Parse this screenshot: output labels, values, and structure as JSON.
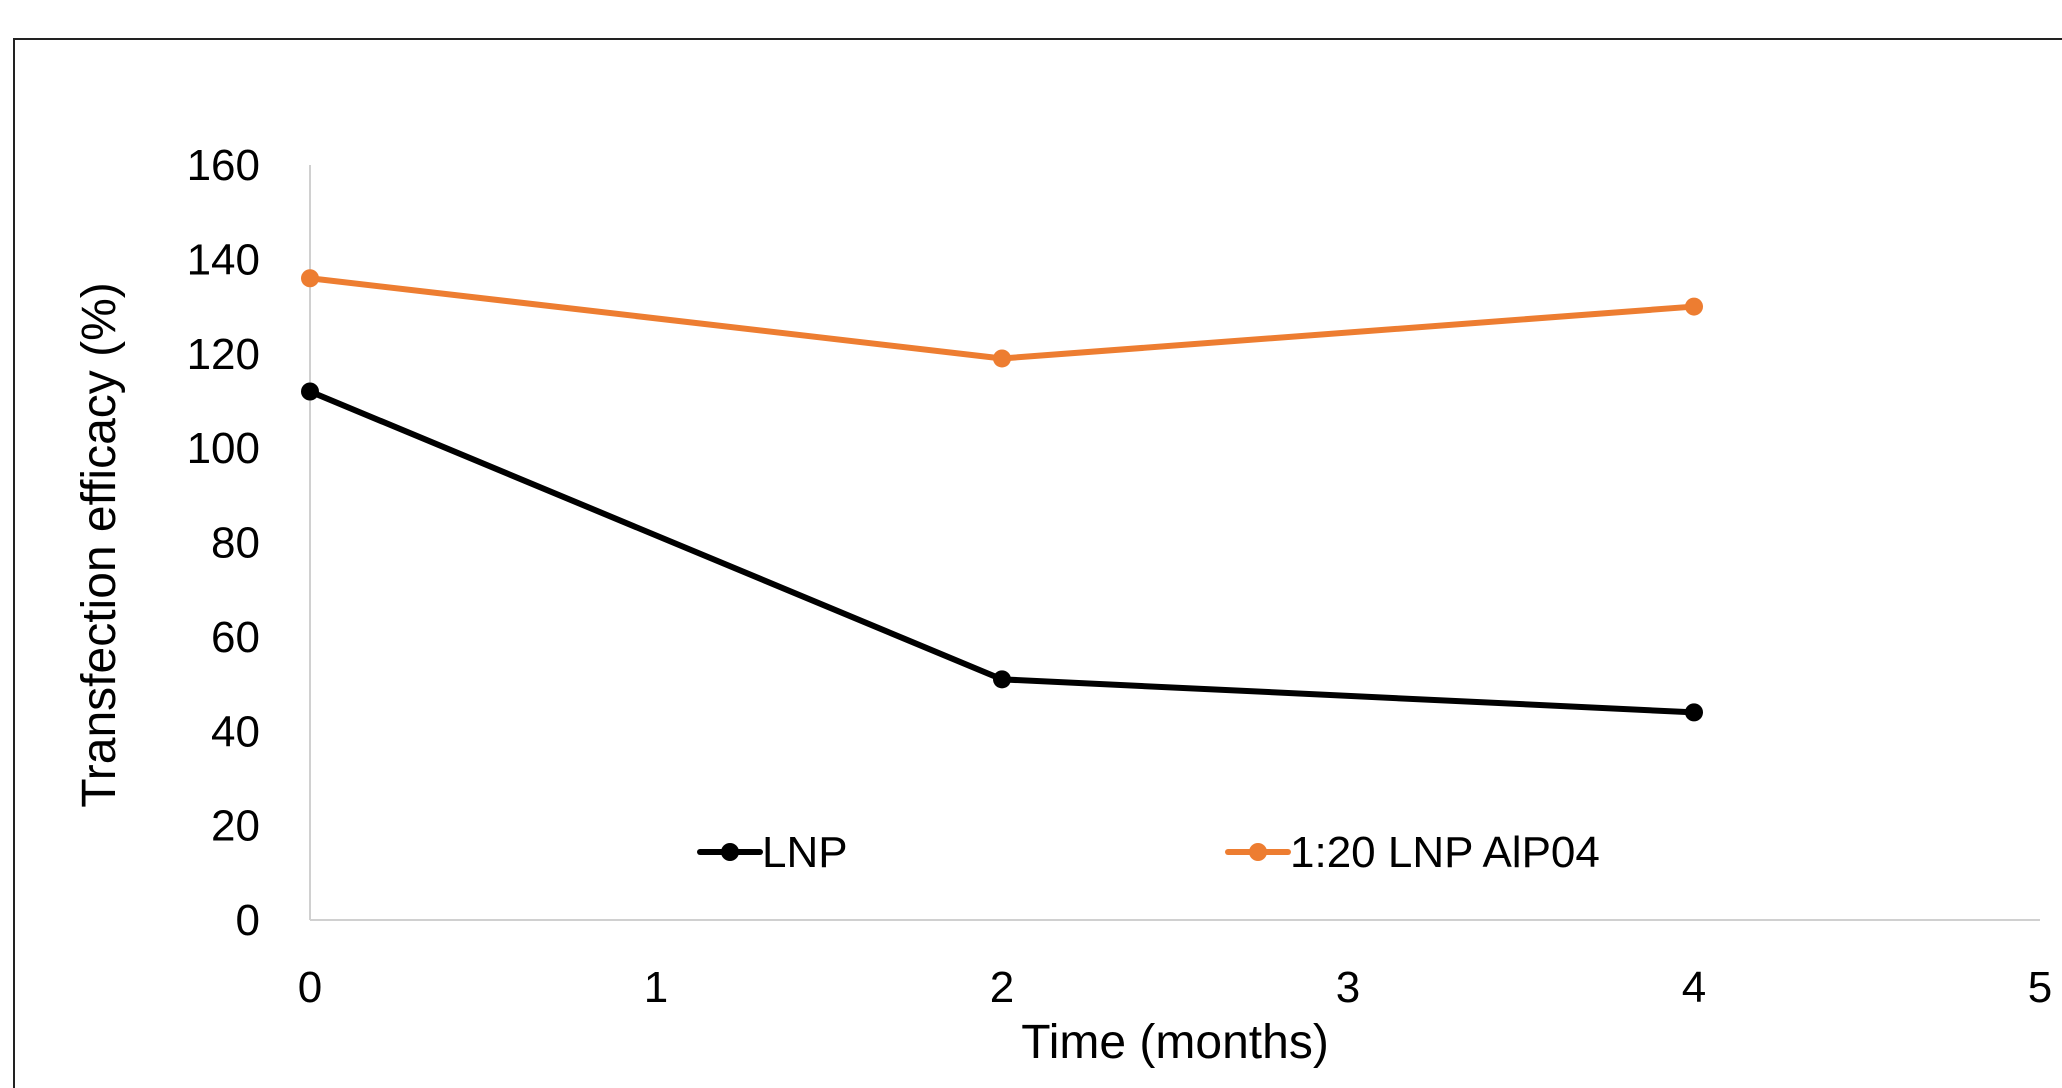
{
  "chart_data": {
    "type": "line",
    "xlabel": "Time (months)",
    "ylabel": "Transfection efficacy (%)",
    "xlim": [
      0,
      5
    ],
    "ylim": [
      0,
      160
    ],
    "x_ticks": [
      "0",
      "1",
      "2",
      "3",
      "4",
      "5"
    ],
    "y_ticks": [
      "0",
      "20",
      "40",
      "60",
      "80",
      "100",
      "120",
      "140",
      "160"
    ],
    "grid": false,
    "legend_position": "bottom-inside",
    "series": [
      {
        "name": "LNP",
        "color": "#000000",
        "x": [
          0,
          2,
          4
        ],
        "y": [
          112,
          51,
          44
        ]
      },
      {
        "name": "1:20 LNP AlP04",
        "color": "#ED7D31",
        "x": [
          0,
          2,
          4
        ],
        "y": [
          136,
          119,
          130
        ]
      }
    ]
  }
}
